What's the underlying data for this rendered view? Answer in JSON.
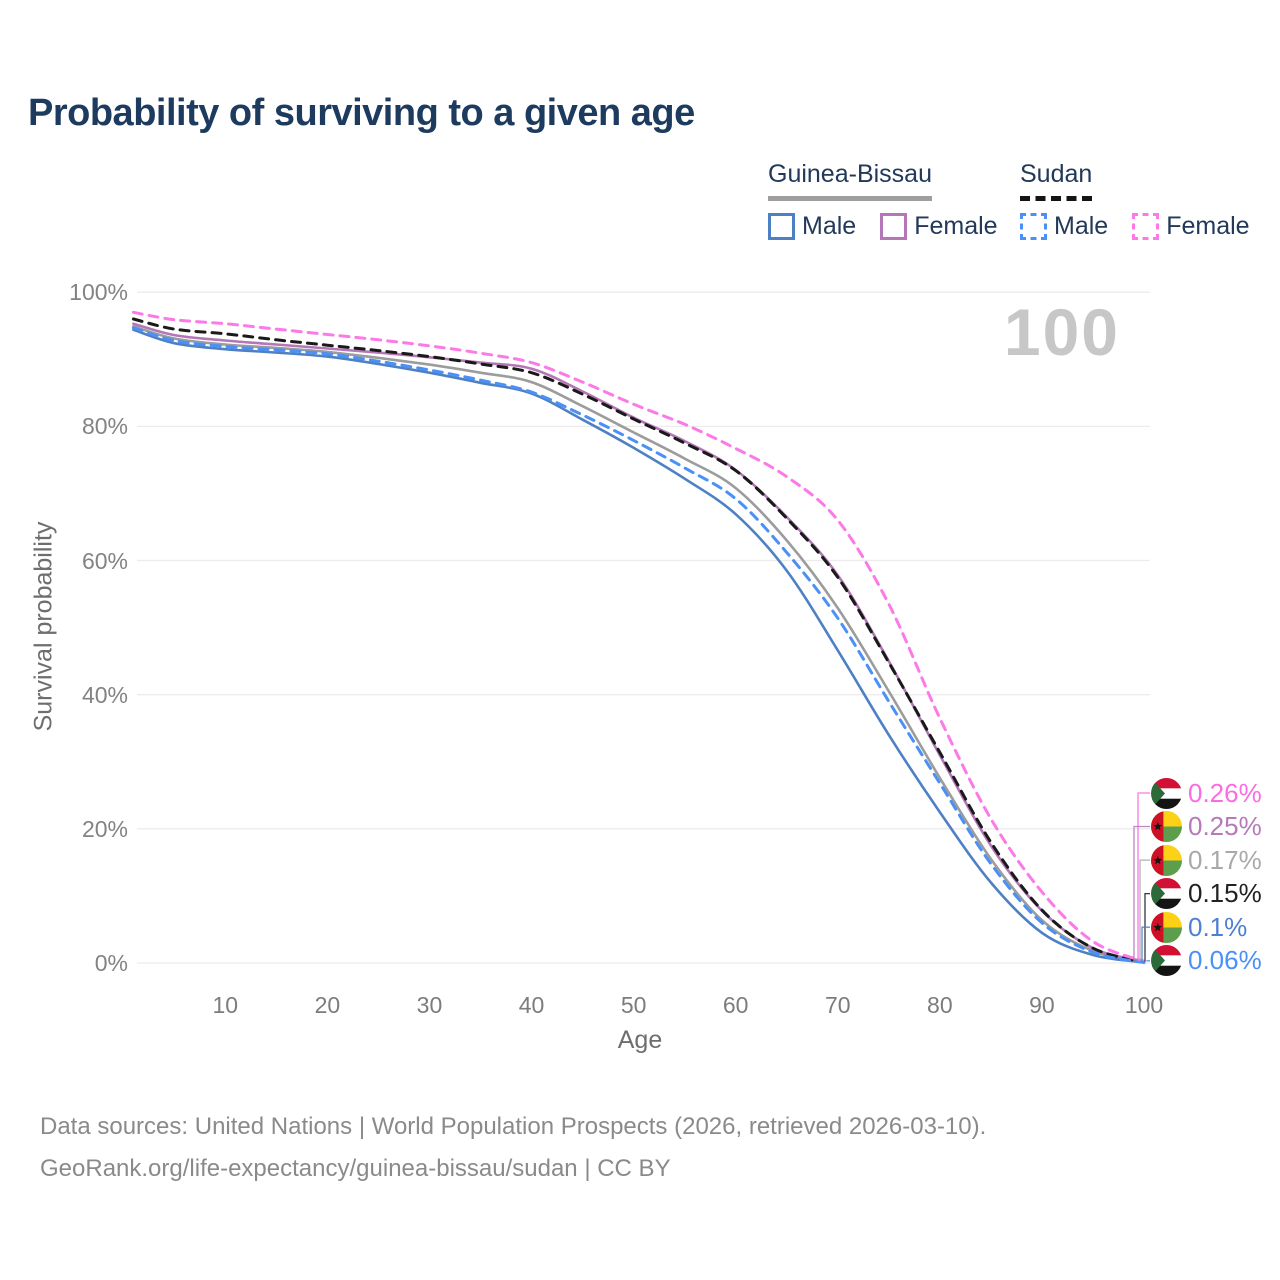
{
  "page": {
    "title": "Probability of surviving to a given age"
  },
  "legend": {
    "groups": [
      {
        "country": "Guinea-Bissau",
        "line_style": "solid",
        "items": [
          {
            "label": "Male"
          },
          {
            "label": "Female"
          }
        ]
      },
      {
        "country": "Sudan",
        "line_style": "dashed",
        "items": [
          {
            "label": "Male"
          },
          {
            "label": "Female"
          }
        ]
      }
    ]
  },
  "watermark": {
    "text": "100"
  },
  "axes": {
    "x_label": "Age",
    "y_label": "Survival probability",
    "x_ticks": [
      {
        "v": 10,
        "label": "10"
      },
      {
        "v": 20,
        "label": "20"
      },
      {
        "v": 30,
        "label": "30"
      },
      {
        "v": 40,
        "label": "40"
      },
      {
        "v": 50,
        "label": "50"
      },
      {
        "v": 60,
        "label": "60"
      },
      {
        "v": 70,
        "label": "70"
      },
      {
        "v": 80,
        "label": "80"
      },
      {
        "v": 90,
        "label": "90"
      },
      {
        "v": 100,
        "label": "100"
      }
    ],
    "y_ticks": [
      {
        "v": 0,
        "label": "0%"
      },
      {
        "v": 20,
        "label": "20%"
      },
      {
        "v": 40,
        "label": "40%"
      },
      {
        "v": 60,
        "label": "60%"
      },
      {
        "v": 80,
        "label": "80%"
      },
      {
        "v": 100,
        "label": "100%"
      }
    ]
  },
  "end_labels": [
    {
      "value": "0.26%",
      "series": "Sudan Female",
      "flag": "sudan",
      "color": "#fb6ce2"
    },
    {
      "value": "0.25%",
      "series": "Guinea-Bissau Female",
      "flag": "guinea-bissau",
      "color": "#b77ab8"
    },
    {
      "value": "0.17%",
      "series": "Guinea-Bissau Both sexes",
      "flag": "guinea-bissau",
      "color": "#a9a9a9"
    },
    {
      "value": "0.15%",
      "series": "Sudan Both sexes",
      "flag": "sudan",
      "color": "#222222"
    },
    {
      "value": "0.1%",
      "series": "Guinea-Bissau Male",
      "flag": "guinea-bissau",
      "color": "#4d7fd2"
    },
    {
      "value": "0.06%",
      "series": "Sudan Male",
      "flag": "sudan",
      "color": "#4a90f7"
    }
  ],
  "footer": {
    "line1": "Data sources: United Nations | World Population Prospects (2026, retrieved 2026-03-10).",
    "line2": "GeoRank.org/life-expectancy/guinea-bissau/sudan | CC BY"
  },
  "chart_data": {
    "type": "line",
    "title": "Probability of surviving to a given age",
    "xlabel": "Age",
    "ylabel": "Survival probability",
    "xlim": [
      1,
      100
    ],
    "ylim": [
      0,
      100
    ],
    "grid": "horizontal",
    "hovered_age": 100,
    "x": [
      1,
      5,
      10,
      15,
      20,
      25,
      30,
      35,
      40,
      45,
      50,
      55,
      60,
      65,
      70,
      75,
      80,
      85,
      90,
      95,
      100
    ],
    "series": [
      {
        "name": "Guinea-Bissau Both sexes",
        "color": "#9c9c9c",
        "line_style": "solid",
        "values": [
          94.9,
          93.1,
          92.2,
          91.7,
          91.1,
          90.2,
          89.2,
          88.0,
          86.6,
          83.0,
          79.1,
          75.2,
          70.8,
          63.0,
          52.9,
          40.5,
          27.6,
          15.5,
          6.4,
          1.8,
          0.17
        ]
      },
      {
        "name": "Guinea-Bissau Female",
        "color": "#b476b6",
        "line_style": "solid",
        "values": [
          95.3,
          93.6,
          92.8,
          92.2,
          91.6,
          91.0,
          90.3,
          89.5,
          88.6,
          85.2,
          81.3,
          77.8,
          73.5,
          66.5,
          57.8,
          45.0,
          31.0,
          17.5,
          7.8,
          2.2,
          0.25
        ]
      },
      {
        "name": "Guinea-Bissau Male",
        "color": "#4e80c4",
        "line_style": "solid",
        "values": [
          94.4,
          92.4,
          91.5,
          91.0,
          90.4,
          89.3,
          88.0,
          86.5,
          84.9,
          81.0,
          76.8,
          72.2,
          66.9,
          58.5,
          46.6,
          34.0,
          22.5,
          12.0,
          4.5,
          1.2,
          0.1
        ]
      },
      {
        "name": "Sudan Both sexes",
        "color": "#1a1a1a",
        "line_style": "dashed",
        "values": [
          96.0,
          94.5,
          93.8,
          92.9,
          92.1,
          91.3,
          90.4,
          89.3,
          88.0,
          84.8,
          81.1,
          77.5,
          73.4,
          66.3,
          57.5,
          44.8,
          31.4,
          18.0,
          7.9,
          2.2,
          0.15
        ]
      },
      {
        "name": "Sudan Female",
        "color": "#fb7ae8",
        "line_style": "dashed",
        "values": [
          97.0,
          95.9,
          95.3,
          94.5,
          93.7,
          92.9,
          92.0,
          90.9,
          89.5,
          86.6,
          83.3,
          80.3,
          76.7,
          72.5,
          66.0,
          53.5,
          36.5,
          21.5,
          10.6,
          3.2,
          0.26
        ]
      },
      {
        "name": "Sudan Male",
        "color": "#4a90f7",
        "line_style": "dashed",
        "values": [
          94.7,
          92.8,
          91.9,
          91.4,
          90.8,
          89.7,
          88.4,
          86.9,
          85.1,
          81.7,
          77.9,
          73.8,
          69.2,
          61.2,
          51.4,
          39.0,
          26.8,
          14.8,
          6.0,
          1.6,
          0.06
        ]
      }
    ]
  }
}
